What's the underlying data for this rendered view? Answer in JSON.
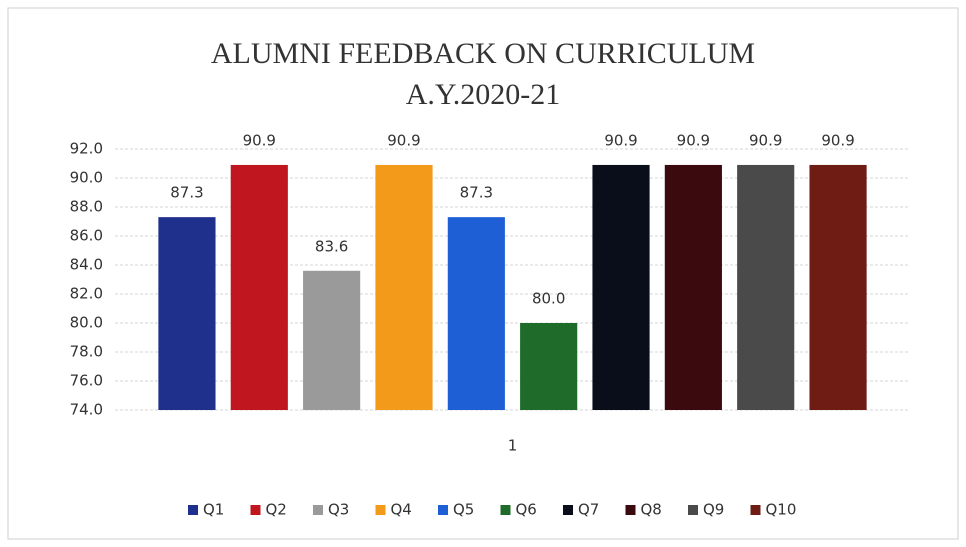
{
  "chart_data": {
    "type": "bar",
    "title": [
      "ALUMNI FEEDBACK ON CURRICULUM",
      "A.Y.2020-21"
    ],
    "categories": [
      "1"
    ],
    "series": [
      {
        "name": "Q1",
        "color": "#1f2f8c",
        "values": [
          87.3
        ]
      },
      {
        "name": "Q2",
        "color": "#c0161f",
        "values": [
          90.9
        ]
      },
      {
        "name": "Q3",
        "color": "#9a9a9a",
        "values": [
          83.6
        ]
      },
      {
        "name": "Q4",
        "color": "#f39a1a",
        "values": [
          90.9
        ]
      },
      {
        "name": "Q5",
        "color": "#1f5fd6",
        "values": [
          87.3
        ]
      },
      {
        "name": "Q6",
        "color": "#1e6b2a",
        "values": [
          80
        ],
        "value_labels": [
          "80.0"
        ]
      },
      {
        "name": "Q7",
        "color": "#0a0d1a",
        "values": [
          90.9
        ]
      },
      {
        "name": "Q8",
        "color": "#3a0a0f",
        "values": [
          90.9
        ]
      },
      {
        "name": "Q9",
        "color": "#4a4a4a",
        "values": [
          90.9
        ]
      },
      {
        "name": "Q10",
        "color": "#6e1c14",
        "values": [
          90.9
        ]
      }
    ],
    "ylim": [
      74,
      92
    ],
    "yticks": [
      {
        "value": 74,
        "label": "74.0"
      },
      {
        "value": 76,
        "label": "76.0"
      },
      {
        "value": 78,
        "label": "78.0"
      },
      {
        "value": 80,
        "label": "80.0"
      },
      {
        "value": 82,
        "label": "82.0"
      },
      {
        "value": 84,
        "label": "84.0"
      },
      {
        "value": 86,
        "label": "86.0"
      },
      {
        "value": 88,
        "label": "88.0"
      },
      {
        "value": 90,
        "label": "90.0"
      },
      {
        "value": 92,
        "label": "92.0"
      }
    ],
    "grid": true,
    "legend": "bottom"
  }
}
